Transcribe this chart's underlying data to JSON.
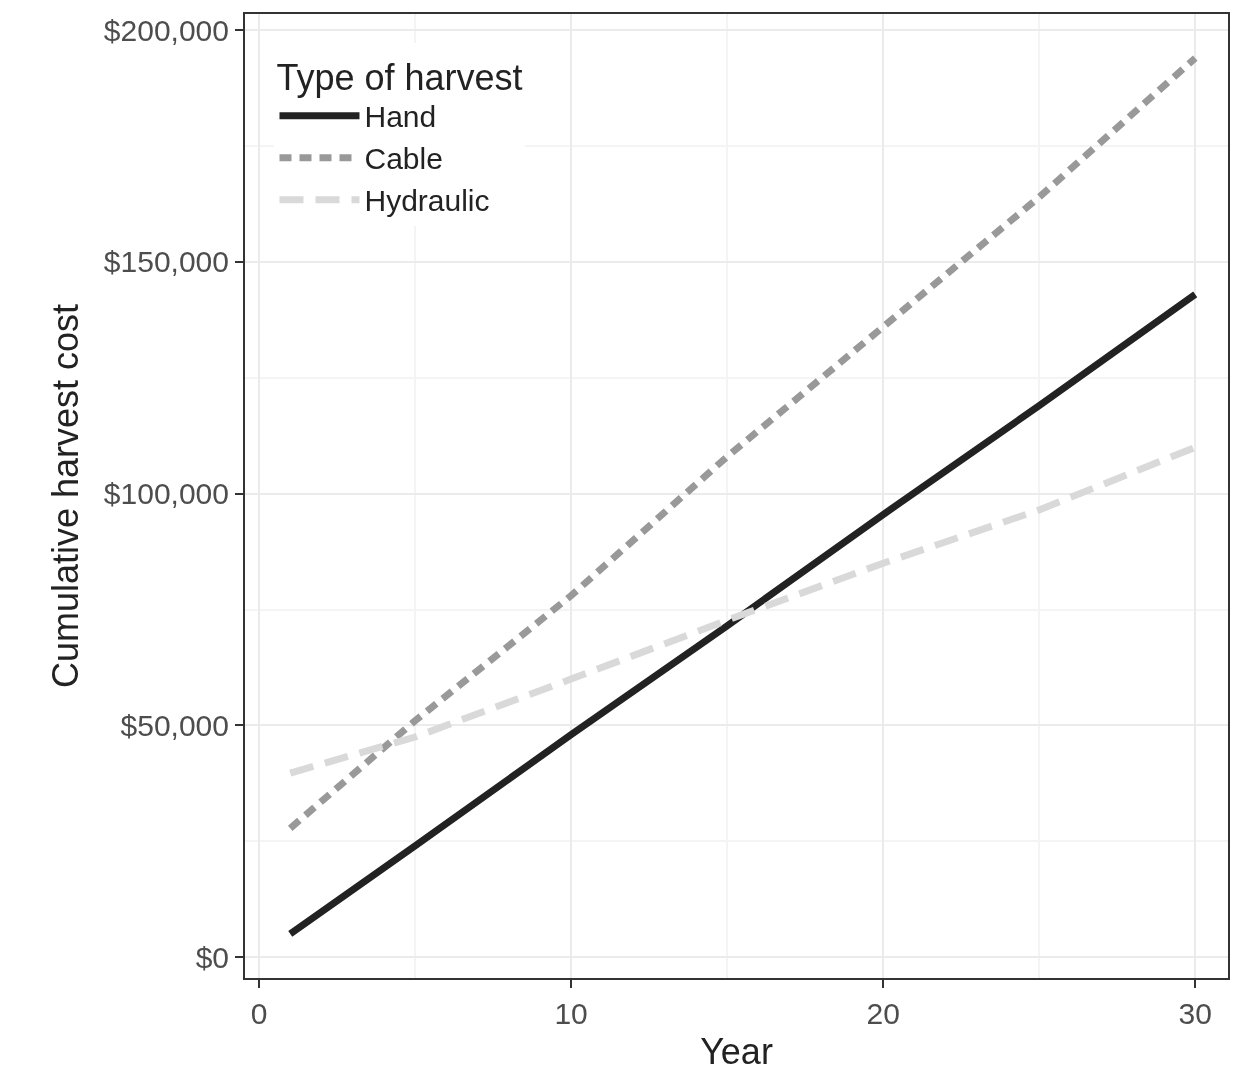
{
  "chart_data": {
    "type": "line",
    "xlabel": "Year",
    "ylabel": "Cumulative harvest cost",
    "legend_title": "Type of harvest",
    "x": [
      1,
      5,
      10,
      15,
      20,
      25,
      30
    ],
    "series": [
      {
        "name": "Hand",
        "color": "#222222",
        "line_style": "solid",
        "values": [
          5000,
          24000,
          48000,
          71500,
          95500,
          119000,
          143000
        ]
      },
      {
        "name": "Cable",
        "color": "#999999",
        "line_style": "dotted",
        "values": [
          27800,
          51000,
          78000,
          108000,
          136000,
          164000,
          194000
        ]
      },
      {
        "name": "Hydraulic",
        "color": "#d9d9d9",
        "line_style": "dashed",
        "values": [
          39700,
          47500,
          60000,
          72700,
          85000,
          96500,
          110000
        ]
      }
    ],
    "xlim": [
      -0.45,
      31.05
    ],
    "xticks": [
      0,
      10,
      20,
      30
    ],
    "ylim": [
      -4500,
      203500
    ],
    "yticks": [
      {
        "value": 0,
        "label": "$0"
      },
      {
        "value": 50000,
        "label": "$50,000"
      },
      {
        "value": 100000,
        "label": "$100,000"
      },
      {
        "value": 150000,
        "label": "$150,000"
      },
      {
        "value": 200000,
        "label": "$200,000"
      }
    ],
    "grid": true,
    "legend": "top left",
    "marker": "none"
  }
}
